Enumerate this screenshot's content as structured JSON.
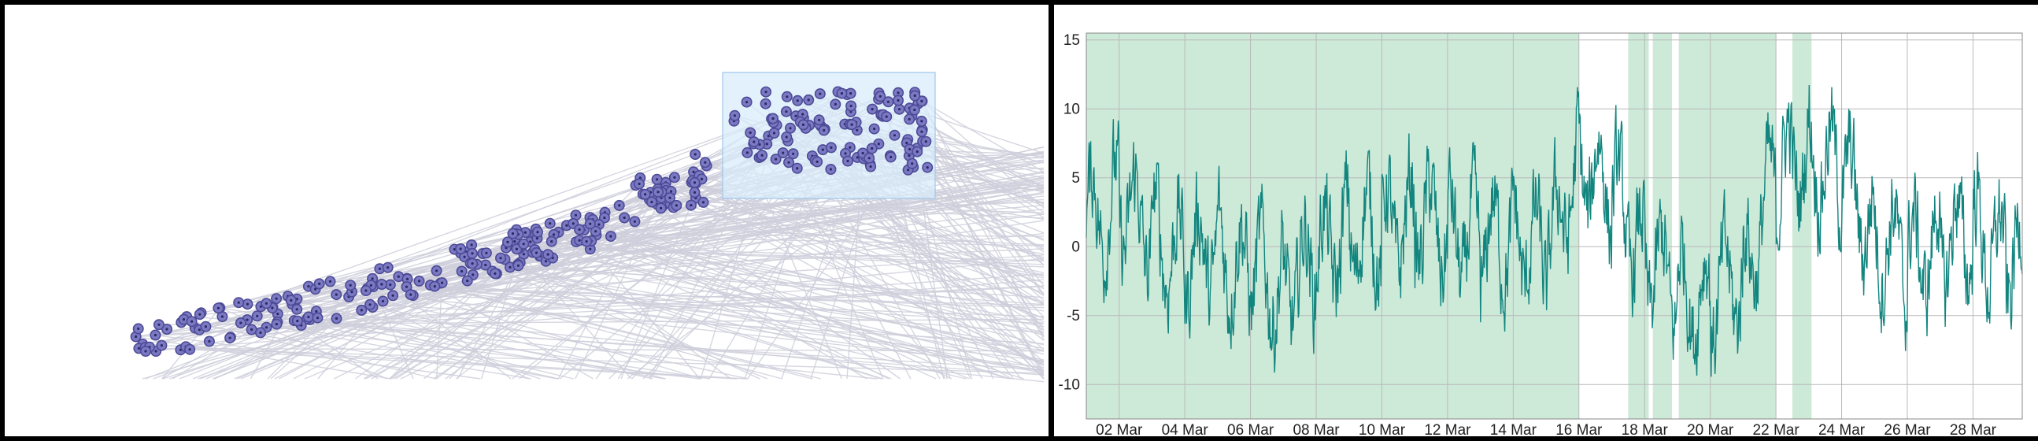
{
  "colors": {
    "edge": "#cfcfdc",
    "node_fill": "#7b79c2",
    "node_stroke": "#4c4a96",
    "brush_fill": "#d8ebfb",
    "brush_stroke": "#9ec6ea",
    "line": "#12857f",
    "band": "#cde9d8",
    "grid": "#b9b9b9"
  },
  "chart_data": [
    {
      "type": "scatter",
      "variant": "node-link-with-brush-selection",
      "title": "",
      "xlabel": "",
      "ylabel": "",
      "node_count_approx": 330,
      "brush_selection": true
    },
    {
      "type": "line",
      "title": "",
      "xlabel": "",
      "ylabel": "",
      "x_start": "2021-03-01",
      "x_end": "2021-03-29 12:00",
      "xticks": [
        "02 Mar",
        "04 Mar",
        "06 Mar",
        "08 Mar",
        "10 Mar",
        "12 Mar",
        "14 Mar",
        "16 Mar",
        "18 Mar",
        "20 Mar",
        "22 Mar",
        "24 Mar",
        "26 Mar",
        "28 Mar"
      ],
      "ylim": [
        -12.5,
        15.5
      ],
      "yticks": [
        15,
        10,
        5,
        0,
        -5,
        -10
      ],
      "grid": true,
      "highlight_ranges": [
        [
          "2021-03-01",
          "2021-03-16 00:00"
        ],
        [
          "2021-03-17 12:00",
          "2021-03-18 03:00"
        ],
        [
          "2021-03-18 06:00",
          "2021-03-18 20:00"
        ],
        [
          "2021-03-19 01:00",
          "2021-03-22 00:00"
        ],
        [
          "2021-03-22 12:00",
          "2021-03-23 02:00"
        ]
      ],
      "daily_levels": [
        2,
        3,
        1,
        -1,
        0,
        -2,
        -3,
        -1,
        1,
        1,
        2,
        1,
        0,
        1,
        -1,
        6,
        4,
        -1,
        -3,
        -4,
        -2,
        5,
        7,
        5,
        1,
        -1,
        0,
        1,
        -1,
        -1
      ],
      "series": [
        {
          "values_generated": "noisy oscillation around daily_levels, amplitude about ±5"
        }
      ]
    }
  ]
}
